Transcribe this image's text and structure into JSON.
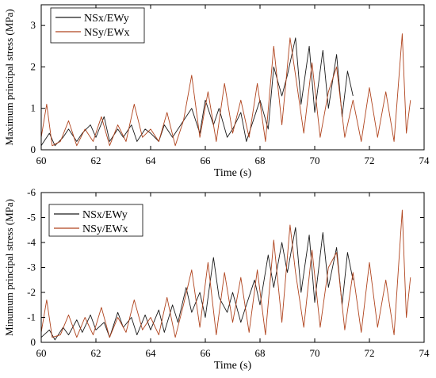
{
  "chart_data": [
    {
      "type": "line",
      "xlabel": "Time (s)",
      "ylabel": "Maximum principal stress (MPa)",
      "xlim": [
        60,
        74
      ],
      "ylim": [
        0,
        3.5
      ],
      "xticks": [
        60,
        62,
        64,
        66,
        68,
        70,
        72,
        74
      ],
      "yticks": [
        0,
        1,
        2,
        3
      ],
      "ytick_labels": [
        "0",
        "1",
        "2",
        "3"
      ],
      "y_inverted": false,
      "legend_position": "top-left",
      "colors": [
        "#1a1a1a",
        "#b0441e"
      ],
      "grid": false,
      "series": [
        {
          "name": "NSx/EWy",
          "x": [
            60.0,
            60.3,
            60.5,
            60.8,
            61.0,
            61.3,
            61.5,
            61.8,
            62.0,
            62.3,
            62.5,
            62.8,
            63.0,
            63.3,
            63.5,
            63.8,
            64.0,
            64.3,
            64.5,
            64.8,
            65.0,
            65.3,
            65.5,
            65.8,
            66.0,
            66.3,
            66.5,
            66.8,
            67.0,
            67.3,
            67.5,
            67.8,
            68.0,
            68.3,
            68.5,
            68.8,
            69.0,
            69.3,
            69.5,
            69.8,
            70.0,
            70.3,
            70.5,
            70.8,
            71.0,
            71.2,
            71.4
          ],
          "values": [
            0.1,
            0.4,
            0.1,
            0.3,
            0.5,
            0.2,
            0.4,
            0.6,
            0.3,
            0.8,
            0.2,
            0.5,
            0.3,
            0.6,
            0.2,
            0.5,
            0.4,
            0.2,
            0.6,
            0.3,
            0.5,
            0.8,
            1.0,
            0.4,
            1.2,
            0.6,
            1.0,
            0.3,
            0.5,
            0.9,
            0.2,
            0.8,
            1.2,
            0.5,
            2.0,
            1.3,
            1.8,
            2.7,
            1.1,
            2.5,
            0.9,
            2.4,
            1.0,
            2.3,
            0.8,
            1.9,
            1.3
          ]
        },
        {
          "name": "NSy/EWx",
          "x": [
            60.0,
            60.2,
            60.4,
            60.7,
            61.0,
            61.3,
            61.6,
            61.9,
            62.2,
            62.5,
            62.8,
            63.1,
            63.4,
            63.7,
            64.0,
            64.3,
            64.6,
            64.9,
            65.2,
            65.5,
            65.8,
            66.1,
            66.4,
            66.7,
            67.0,
            67.3,
            67.6,
            67.9,
            68.2,
            68.5,
            68.8,
            69.1,
            69.3,
            69.6,
            69.9,
            70.2,
            70.5,
            70.8,
            71.1,
            71.4,
            71.7,
            72.0,
            72.3,
            72.6,
            72.9,
            73.2,
            73.35,
            73.5
          ],
          "values": [
            0.3,
            1.1,
            0.1,
            0.2,
            0.7,
            0.1,
            0.5,
            0.2,
            0.8,
            0.1,
            0.6,
            0.2,
            1.1,
            0.3,
            0.5,
            0.2,
            0.9,
            0.1,
            0.7,
            1.8,
            0.3,
            1.4,
            0.2,
            1.6,
            0.4,
            1.2,
            0.3,
            1.6,
            0.2,
            2.5,
            0.6,
            2.7,
            1.8,
            0.4,
            2.1,
            0.3,
            1.4,
            2.0,
            0.3,
            1.2,
            0.2,
            1.5,
            0.3,
            1.4,
            0.2,
            2.8,
            0.4,
            1.2
          ]
        }
      ]
    },
    {
      "type": "line",
      "xlabel": "Time (s)",
      "ylabel": "Minumum principal stress (MPa)",
      "xlim": [
        60,
        74
      ],
      "ylim": [
        0,
        -6
      ],
      "xticks": [
        60,
        62,
        64,
        66,
        68,
        70,
        72,
        74
      ],
      "yticks": [
        0,
        -1,
        -2,
        -3,
        -4,
        -5,
        -6
      ],
      "ytick_labels": [
        "0",
        "-1",
        "-2",
        "-3",
        "-4",
        "-5",
        "-6"
      ],
      "y_inverted": true,
      "legend_position": "top-left",
      "colors": [
        "#1a1a1a",
        "#b0441e"
      ],
      "grid": false,
      "series": [
        {
          "name": "NSx/EWy",
          "x": [
            60.0,
            60.3,
            60.5,
            60.8,
            61.0,
            61.3,
            61.5,
            61.8,
            62.0,
            62.3,
            62.5,
            62.8,
            63.0,
            63.3,
            63.5,
            63.8,
            64.0,
            64.3,
            64.5,
            64.8,
            65.0,
            65.3,
            65.5,
            65.8,
            66.0,
            66.3,
            66.5,
            66.8,
            67.0,
            67.3,
            67.5,
            67.8,
            68.0,
            68.3,
            68.5,
            68.8,
            69.0,
            69.3,
            69.5,
            69.8,
            70.0,
            70.3,
            70.5,
            70.8,
            71.0,
            71.2,
            71.4
          ],
          "values": [
            -0.2,
            -0.5,
            -0.1,
            -0.6,
            -0.3,
            -0.9,
            -0.4,
            -1.1,
            -0.5,
            -0.8,
            -0.2,
            -1.2,
            -0.6,
            -1.0,
            -0.3,
            -1.1,
            -0.5,
            -1.3,
            -0.4,
            -1.5,
            -0.8,
            -2.2,
            -1.2,
            -2.0,
            -1.0,
            -3.4,
            -1.8,
            -1.2,
            -2.0,
            -0.8,
            -1.5,
            -2.5,
            -1.5,
            -3.5,
            -2.2,
            -4.0,
            -2.8,
            -4.6,
            -2.0,
            -4.3,
            -1.6,
            -4.4,
            -2.2,
            -3.8,
            -1.5,
            -3.6,
            -2.5
          ]
        },
        {
          "name": "NSy/EWx",
          "x": [
            60.0,
            60.2,
            60.4,
            60.7,
            61.0,
            61.3,
            61.6,
            61.9,
            62.2,
            62.5,
            62.8,
            63.1,
            63.4,
            63.7,
            64.0,
            64.3,
            64.6,
            64.9,
            65.2,
            65.5,
            65.8,
            66.1,
            66.4,
            66.7,
            67.0,
            67.3,
            67.6,
            67.9,
            68.2,
            68.5,
            68.8,
            69.1,
            69.3,
            69.6,
            69.9,
            70.2,
            70.5,
            70.8,
            71.1,
            71.4,
            71.7,
            72.0,
            72.3,
            72.6,
            72.9,
            73.2,
            73.35,
            73.5
          ],
          "values": [
            -0.4,
            -1.7,
            -0.2,
            -0.3,
            -1.1,
            -0.2,
            -1.0,
            -0.3,
            -1.4,
            -0.2,
            -1.0,
            -0.4,
            -1.7,
            -0.5,
            -1.0,
            -0.3,
            -1.8,
            -0.2,
            -1.5,
            -2.9,
            -0.6,
            -3.2,
            -0.3,
            -2.8,
            -0.8,
            -2.6,
            -0.4,
            -2.9,
            -0.3,
            -4.1,
            -0.8,
            -4.7,
            -2.8,
            -0.6,
            -3.7,
            -0.6,
            -3.0,
            -3.6,
            -0.5,
            -2.8,
            -0.4,
            -3.2,
            -0.6,
            -2.5,
            -0.3,
            -5.3,
            -1.0,
            -2.6
          ]
        }
      ]
    }
  ]
}
